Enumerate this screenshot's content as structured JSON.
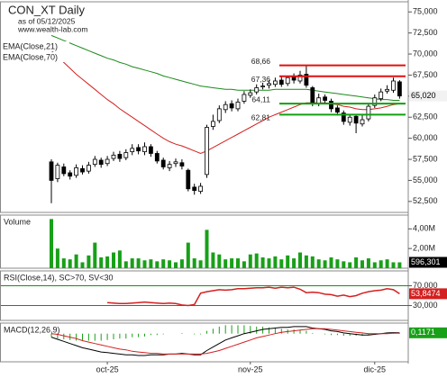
{
  "chart_data": [
    {
      "type": "candlestick",
      "title": "CON_XT Daily",
      "subtitle": "as of 05/12/2025",
      "source": "www.wealth-lab.com",
      "categories": [
        null,
        null,
        null,
        null,
        null,
        null,
        null,
        null,
        null,
        "oct-25",
        null,
        null,
        null,
        null,
        null,
        null,
        null,
        null,
        null,
        null,
        null,
        null,
        null,
        null,
        null,
        null,
        null,
        null,
        null,
        null,
        null,
        null,
        "nov-25",
        null,
        null,
        null,
        null,
        null,
        null,
        null,
        null,
        null,
        null,
        null,
        null,
        null,
        null,
        null,
        null,
        null,
        null,
        null,
        "dic-25",
        null,
        null,
        null,
        null
      ],
      "open": [
        57.2,
        55.2,
        56.6,
        55.9,
        55.6,
        56.4,
        56.1,
        56.9,
        57.4,
        57.0,
        57.6,
        58.1,
        57.7,
        58.4,
        58.9,
        58.4,
        59.0,
        58.2,
        57.4,
        56.5,
        57.0,
        57.1,
        56.2,
        54.2,
        53.7,
        55.7,
        61.4,
        62.1,
        63.4,
        64.1,
        63.5,
        64.4,
        65.1,
        65.5,
        66.1,
        66.3,
        66.4,
        66.9,
        66.5,
        67.3,
        66.8,
        67.6,
        66.0,
        64.1,
        64.9,
        64.4,
        63.6,
        63.0,
        61.9,
        62.6,
        61.7,
        62.3,
        63.9,
        64.7,
        65.6,
        65.7,
        66.7
      ],
      "high": [
        57.5,
        57.1,
        57.0,
        56.2,
        56.9,
        56.8,
        57.2,
        57.9,
        57.7,
        57.9,
        58.4,
        58.5,
        58.7,
        59.3,
        59.3,
        59.5,
        59.3,
        58.5,
        57.7,
        57.3,
        57.6,
        57.5,
        56.4,
        54.6,
        54.7,
        61.6,
        62.8,
        63.9,
        64.4,
        64.5,
        64.7,
        65.6,
        65.8,
        66.4,
        66.6,
        66.9,
        67.2,
        67.3,
        67.36,
        67.7,
        68.0,
        68.66,
        66.2,
        65.3,
        65.2,
        64.7,
        63.9,
        63.3,
        62.9,
        62.9,
        62.8,
        64.1,
        65.2,
        65.9,
        66.3,
        67.2,
        66.9
      ],
      "low": [
        52.3,
        54.8,
        55.5,
        55.1,
        55.3,
        55.7,
        55.8,
        56.6,
        56.5,
        56.7,
        57.3,
        57.2,
        57.4,
        58.0,
        58.1,
        58.0,
        57.8,
        57.0,
        56.3,
        56.1,
        56.6,
        56.3,
        53.7,
        53.3,
        53.4,
        55.3,
        61.0,
        61.8,
        63.0,
        63.2,
        63.2,
        64.1,
        64.8,
        65.2,
        65.8,
        65.9,
        66.1,
        66.1,
        66.2,
        66.5,
        66.5,
        66.0,
        63.8,
        63.8,
        64.1,
        63.1,
        62.7,
        61.6,
        61.5,
        60.6,
        61.4,
        62.0,
        63.6,
        64.4,
        65.3,
        65.4,
        64.7
      ],
      "close": [
        55.0,
        56.8,
        55.8,
        55.5,
        56.5,
        56.0,
        56.8,
        57.5,
        56.9,
        57.5,
        58.0,
        57.6,
        58.3,
        58.8,
        58.5,
        59.0,
        58.2,
        57.3,
        56.6,
        56.9,
        57.2,
        56.7,
        54.0,
        53.8,
        54.3,
        61.3,
        62.0,
        63.5,
        64.0,
        63.6,
        64.3,
        65.2,
        65.4,
        66.0,
        66.2,
        66.5,
        66.8,
        66.4,
        67.2,
        66.9,
        67.5,
        66.3,
        64.2,
        64.8,
        64.5,
        63.5,
        63.1,
        62.0,
        62.5,
        61.8,
        62.2,
        63.8,
        64.8,
        65.5,
        65.8,
        66.8,
        65.02
      ],
      "last_label": {
        "value": 65.02,
        "label": "65,020"
      },
      "series": [
        {
          "name": "EMA(Close,21)",
          "color": "#d42020",
          "values": [
            70.4,
            69.7,
            69.0,
            68.3,
            67.6,
            67.0,
            66.4,
            65.8,
            65.2,
            64.6,
            64.1,
            63.5,
            63.0,
            62.5,
            62.0,
            61.5,
            61.0,
            60.5,
            60.0,
            59.6,
            59.3,
            59.1,
            58.8,
            58.5,
            58.2,
            58.5,
            58.9,
            59.3,
            59.7,
            60.1,
            60.5,
            60.9,
            61.3,
            61.7,
            62.1,
            62.5,
            62.8,
            63.1,
            63.4,
            63.7,
            64.0,
            64.2,
            64.2,
            64.2,
            64.2,
            64.1,
            64.0,
            63.8,
            63.7,
            63.5,
            63.4,
            63.4,
            63.5,
            63.6,
            63.8,
            64.0,
            64.1
          ]
        },
        {
          "name": "EMA(Close,70)",
          "color": "#1a8a1a",
          "values": [
            72.2,
            71.9,
            71.6,
            71.3,
            71.0,
            70.7,
            70.4,
            70.1,
            69.8,
            69.5,
            69.3,
            69.0,
            68.8,
            68.5,
            68.3,
            68.1,
            67.9,
            67.7,
            67.4,
            67.2,
            67.0,
            66.8,
            66.6,
            66.4,
            66.2,
            66.1,
            66.0,
            65.9,
            65.8,
            65.8,
            65.7,
            65.7,
            65.7,
            65.7,
            65.7,
            65.7,
            65.8,
            65.8,
            65.8,
            65.8,
            65.8,
            65.8,
            65.7,
            65.6,
            65.5,
            65.4,
            65.3,
            65.2,
            65.1,
            65.0,
            64.9,
            64.8,
            64.7,
            64.6,
            64.6,
            64.5,
            64.5
          ]
        }
      ],
      "levels": [
        {
          "value": 68.66,
          "label": "68,66",
          "color": "#e01010"
        },
        {
          "value": 67.36,
          "label": "67,36",
          "color": "#e01010"
        },
        {
          "value": 64.11,
          "label": "64,11",
          "color": "#10a010"
        },
        {
          "value": 62.81,
          "label": "62,81",
          "color": "#10a010"
        }
      ],
      "ylim": [
        51.2,
        76.2
      ],
      "yticks": [
        {
          "value": 52.5,
          "label": "52,500"
        },
        {
          "value": 55,
          "label": "55,000"
        },
        {
          "value": 57.5,
          "label": "57,500"
        },
        {
          "value": 60,
          "label": "60,000"
        },
        {
          "value": 62.5,
          "label": "62,500"
        },
        {
          "value": 65,
          "label": "65,000"
        },
        {
          "value": 67.5,
          "label": "67,500"
        },
        {
          "value": 70,
          "label": "70,000"
        },
        {
          "value": 72.5,
          "label": "72,500"
        },
        {
          "value": 75,
          "label": "75,000"
        }
      ]
    },
    {
      "type": "bar",
      "title": "Volume",
      "color": "#18a018",
      "values": [
        5.0,
        2.0,
        1.0,
        0.9,
        1.4,
        0.6,
        1.3,
        2.6,
        1.1,
        1.2,
        1.6,
        1.8,
        0.7,
        1.0,
        1.0,
        0.8,
        0.9,
        0.7,
        0.9,
        0.8,
        0.6,
        0.9,
        2.6,
        1.0,
        0.8,
        3.9,
        1.6,
        1.4,
        0.9,
        1.0,
        1.0,
        0.7,
        1.4,
        1.5,
        1.1,
        1.0,
        1.2,
        0.9,
        1.3,
        1.0,
        1.6,
        1.3,
        1.2,
        0.9,
        0.8,
        1.1,
        0.9,
        0.7,
        0.6,
        1.1,
        0.8,
        1.0,
        0.6,
        0.8,
        0.9,
        0.6,
        0.596301
      ],
      "last_label": {
        "value": 0.596301,
        "label": "596,301"
      },
      "ylim": [
        0,
        5.4
      ],
      "yticks": [
        {
          "value": 2,
          "label": "2,00M"
        },
        {
          "value": 4,
          "label": "4,00M"
        }
      ]
    },
    {
      "type": "line",
      "title": "RSI(Close,14), SC>70, SV<30",
      "series": [
        {
          "color": "#d42020",
          "values": [
            null,
            null,
            null,
            null,
            null,
            null,
            null,
            null,
            null,
            36,
            35,
            34,
            34,
            35,
            36,
            37,
            36,
            35,
            34,
            35,
            34,
            31,
            30,
            32,
            55,
            58,
            60,
            62,
            61,
            62,
            64,
            64,
            65,
            66,
            66,
            67,
            65,
            67,
            66,
            67,
            63,
            56,
            57,
            56,
            53,
            52,
            49,
            51,
            48,
            50,
            55,
            58,
            60,
            61,
            64,
            62,
            53.8474
          ]
        }
      ],
      "last_label": {
        "value": 53.8474,
        "label": "53,8474"
      },
      "ylim": [
        0,
        100
      ],
      "yticks": [
        {
          "value": 30,
          "label": "30,000"
        },
        {
          "value": 70,
          "label": "70,000"
        }
      ]
    },
    {
      "type": "macd",
      "title": "MACD(12,26,9)",
      "series": [
        {
          "color": "#000000",
          "values": [
            -0.5,
            -0.8,
            -1.1,
            -1.4,
            -1.7,
            -2.0,
            -2.2,
            -2.4,
            -2.6,
            -2.7,
            -2.8,
            -2.9,
            -3.0,
            -3.0,
            -3.1,
            -3.1,
            -3.0,
            -3.0,
            -3.0,
            -2.9,
            -2.9,
            -2.8,
            -2.9,
            -3.0,
            -3.0,
            -2.4,
            -1.9,
            -1.4,
            -0.9,
            -0.6,
            -0.3,
            0.0,
            0.2,
            0.4,
            0.6,
            0.7,
            0.8,
            0.9,
            0.9,
            1.0,
            1.0,
            1.0,
            0.8,
            0.7,
            0.6,
            0.4,
            0.3,
            0.1,
            0.0,
            -0.1,
            -0.2,
            -0.2,
            -0.1,
            0.0,
            0.1,
            0.15,
            0.1171
          ]
        },
        {
          "color": "#d42020",
          "values": [
            0.0,
            -0.1,
            -0.3,
            -0.5,
            -0.7,
            -1.0,
            -1.2,
            -1.4,
            -1.6,
            -1.8,
            -2.0,
            -2.2,
            -2.3,
            -2.5,
            -2.6,
            -2.7,
            -2.8,
            -2.8,
            -2.9,
            -2.9,
            -2.9,
            -2.9,
            -2.9,
            -2.9,
            -2.9,
            -2.8,
            -2.6,
            -2.4,
            -2.1,
            -1.8,
            -1.5,
            -1.2,
            -0.9,
            -0.6,
            -0.4,
            -0.2,
            0.0,
            0.2,
            0.3,
            0.4,
            0.5,
            0.6,
            0.7,
            0.7,
            0.7,
            0.6,
            0.5,
            0.4,
            0.3,
            0.2,
            0.1,
            0.0,
            0.0,
            0.0,
            0.0,
            0.05,
            0.05
          ]
        }
      ],
      "histogram": {
        "color": "#18a018",
        "values": [
          -0.5,
          -0.7,
          -0.8,
          -0.9,
          -1.0,
          -1.0,
          -1.0,
          -1.0,
          -1.0,
          -0.9,
          -0.8,
          -0.7,
          -0.7,
          -0.5,
          -0.5,
          -0.4,
          -0.2,
          -0.2,
          -0.1,
          0.0,
          0.0,
          0.1,
          0.0,
          -0.1,
          -0.1,
          0.4,
          0.7,
          1.0,
          1.2,
          1.2,
          1.2,
          1.2,
          1.1,
          1.0,
          1.0,
          0.9,
          0.8,
          0.7,
          0.6,
          0.6,
          0.5,
          0.4,
          0.1,
          0.0,
          -0.1,
          -0.2,
          -0.2,
          -0.3,
          -0.3,
          -0.3,
          -0.3,
          -0.2,
          -0.1,
          0.0,
          0.1,
          0.1,
          0.07
        ]
      },
      "last_label": {
        "value": 0.1171,
        "label": "0,1171"
      },
      "ylim": [
        -4,
        1.5
      ]
    }
  ]
}
